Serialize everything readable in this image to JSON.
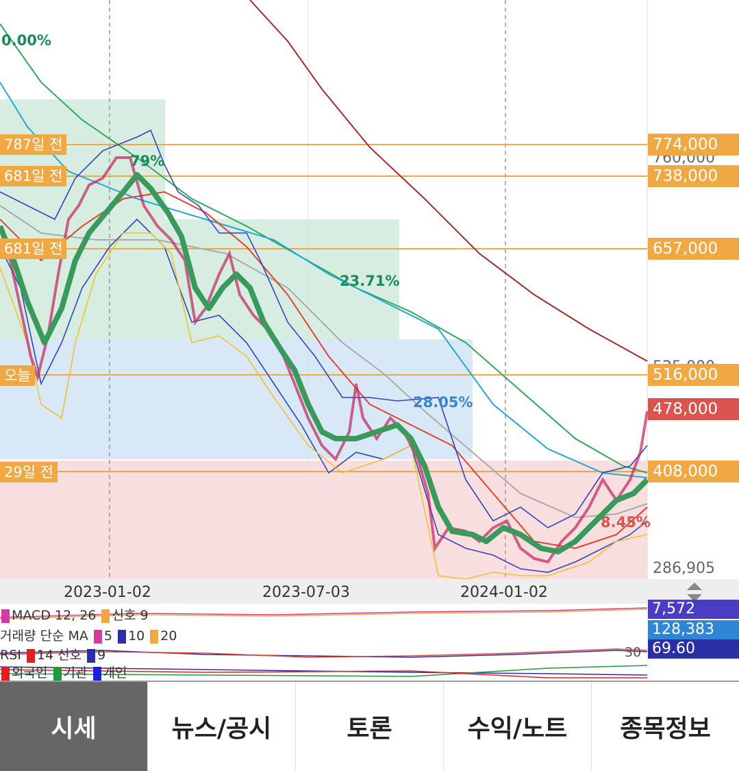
{
  "price_levels": [
    {
      "label": "774,000",
      "kind": "orange"
    },
    {
      "label": "738,000",
      "kind": "orange"
    },
    {
      "label": "657,000",
      "kind": "orange"
    },
    {
      "label": "516,000",
      "kind": "orange"
    },
    {
      "label": "478,000",
      "kind": "red"
    },
    {
      "label": "408,000",
      "kind": "orange"
    }
  ],
  "left_tags": [
    "787일 전",
    "681일 전",
    "681일 전",
    "오늘",
    "29일 전"
  ],
  "gray_prices": {
    "top": "760,000",
    "mid": "525,000",
    "low": "286,905"
  },
  "percent_labels": [
    {
      "text": "0.00%",
      "color": "#1b8a5a"
    },
    {
      "text": "79%",
      "color": "#1b8a5a"
    },
    {
      "text": "23.71%",
      "color": "#1b8a5a"
    },
    {
      "text": "28.05%",
      "color": "#3a87c8"
    },
    {
      "text": "8.45%",
      "color": "#d9534f"
    }
  ],
  "dates": [
    "2023-01-02",
    "2023-07-03",
    "2024-01-02"
  ],
  "indicators": {
    "macd": {
      "name": "MACD 12, 26",
      "signal": "신호 9",
      "value": "7,572",
      "bg": "#4b3cc4"
    },
    "volume": {
      "name": "거래량 단순 MA",
      "p1": "5",
      "p2": "10",
      "p3": "20",
      "value": "128,383",
      "bg": "#2f86d6"
    },
    "rsi": {
      "name": "RSI",
      "period": "14",
      "signal": "신호",
      "sigval": "9",
      "level": "30",
      "value": "69.60",
      "bg": "#2b2fa6"
    },
    "investors": {
      "foreign": "외국인",
      "inst": "기관",
      "retail": "개인"
    }
  },
  "colors": {
    "orange": "#f0a843",
    "red": "#d9534f",
    "green_zone": "#d8ede2",
    "blue_zone": "#d9e8f6",
    "pink_zone": "#f8dede"
  },
  "tabs": [
    {
      "label": "시세",
      "active": true
    },
    {
      "label": "뉴스/공시",
      "active": false
    },
    {
      "label": "토론",
      "active": false
    },
    {
      "label": "수익/노트",
      "active": false
    },
    {
      "label": "종목정보",
      "active": false
    }
  ]
}
